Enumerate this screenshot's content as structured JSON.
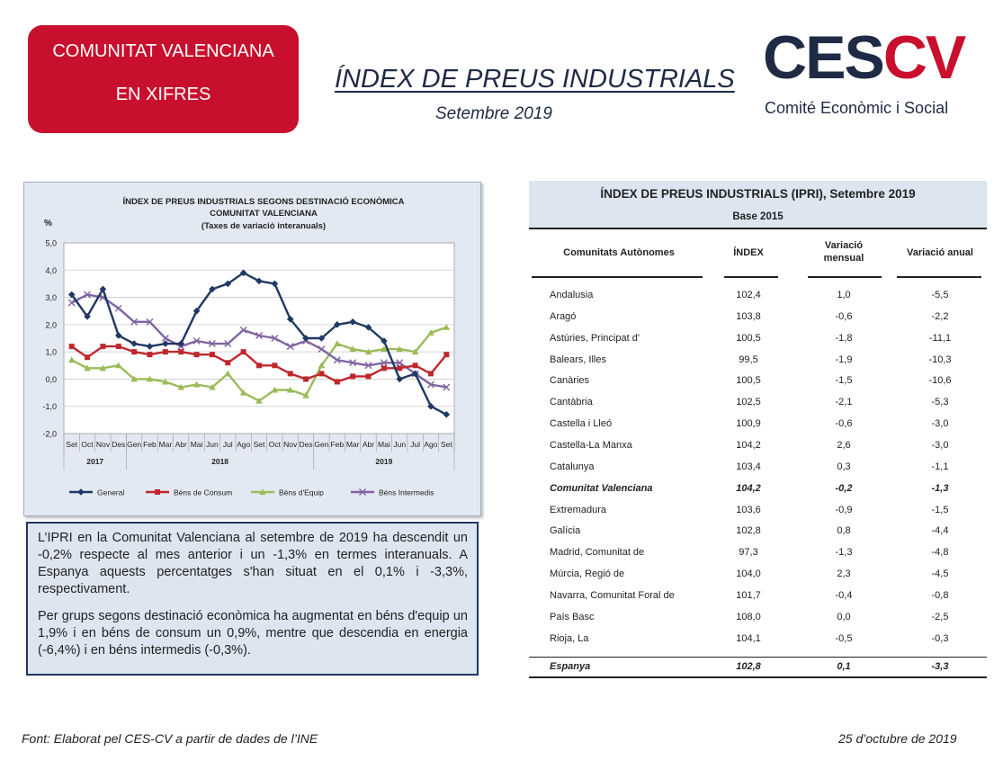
{
  "header": {
    "badge_line1": "COMUNITAT VALENCIANA",
    "badge_line2": "EN XIFRES",
    "title": "ÍNDEX DE PREUS INDUSTRIALS",
    "subtitle": "Setembre 2019",
    "logo_part1": "CES",
    "logo_part2": "CV",
    "logo_sub": "Comité Econòmic i Social"
  },
  "colors": {
    "accent": "#c8102e",
    "navy": "#1f2a44",
    "general": "#1f3864",
    "consum": "#c0272d",
    "equip": "#9bbb59",
    "intermedis": "#8064a2"
  },
  "chart_data": {
    "type": "line",
    "title_lines": [
      "ÍNDEX DE PREUS INDUSTRIALS SEGONS DESTINACIÓ ECONÒMICA",
      "COMUNITAT VALENCIANA",
      "(Taxes de variació interanuals)"
    ],
    "ylabel": "%",
    "ylim": [
      -2.0,
      5.0
    ],
    "yticks": [
      "5,0",
      "4,0",
      "3,0",
      "2,0",
      "1,0",
      "0,0",
      "-1,0",
      "-2,0"
    ],
    "categories": [
      "Set",
      "Oct",
      "Nov",
      "Des",
      "Gen",
      "Feb",
      "Mar",
      "Abr",
      "Mai",
      "Jun",
      "Jul",
      "Ago",
      "Set",
      "Oct",
      "Nov",
      "Des",
      "Gen",
      "Feb",
      "Mar",
      "Abr",
      "Mai",
      "Jun",
      "Jul",
      "Ago",
      "Set"
    ],
    "year_groups": [
      {
        "label": "2017",
        "span": 4
      },
      {
        "label": "2018",
        "span": 12
      },
      {
        "label": "2019",
        "span": 9
      }
    ],
    "grid": true,
    "legend_position": "bottom",
    "series": [
      {
        "name": "General",
        "color": "#1f3864",
        "marker": "diamond",
        "values": [
          3.1,
          2.3,
          3.3,
          1.6,
          1.3,
          1.2,
          1.3,
          1.3,
          2.5,
          3.3,
          3.5,
          3.9,
          3.6,
          3.5,
          2.2,
          1.5,
          1.5,
          2.0,
          2.1,
          1.9,
          1.4,
          0.0,
          0.2,
          -1.0,
          -1.3
        ]
      },
      {
        "name": "Béns de Consum",
        "color": "#c0272d",
        "marker": "square",
        "values": [
          1.2,
          0.8,
          1.2,
          1.2,
          1.0,
          0.9,
          1.0,
          1.0,
          0.9,
          0.9,
          0.6,
          1.0,
          0.5,
          0.5,
          0.2,
          0.0,
          0.2,
          -0.1,
          0.1,
          0.1,
          0.4,
          0.4,
          0.5,
          0.2,
          0.9
        ]
      },
      {
        "name": "Béns d'Equip",
        "color": "#9bbb59",
        "marker": "triangle",
        "values": [
          0.7,
          0.4,
          0.4,
          0.5,
          0.0,
          0.0,
          -0.1,
          -0.3,
          -0.2,
          -0.3,
          0.2,
          -0.5,
          -0.8,
          -0.4,
          -0.4,
          -0.6,
          0.5,
          1.3,
          1.1,
          1.0,
          1.1,
          1.1,
          1.0,
          1.7,
          1.9
        ]
      },
      {
        "name": "Béns Intermedis",
        "color": "#8064a2",
        "marker": "x",
        "values": [
          2.8,
          3.1,
          3.0,
          2.6,
          2.1,
          2.1,
          1.5,
          1.2,
          1.4,
          1.3,
          1.3,
          1.8,
          1.6,
          1.5,
          1.2,
          1.4,
          1.1,
          0.7,
          0.6,
          0.5,
          0.6,
          0.6,
          0.2,
          -0.2,
          -0.3
        ]
      }
    ]
  },
  "textbox": {
    "p1": "L’IPRI en la Comunitat Valenciana al setembre de 2019 ha descendit un -0,2% respecte al mes anterior i un -1,3% en termes interanuals. A Espanya aquests percentatges s'han situat en el 0,1% i -3,3%, respectivament.",
    "p2": "Per grups segons destinació econòmica ha augmentat en béns d'equip un 1,9% i en béns de consum un 0,9%, mentre que descendia en energia (-6,4%) i en béns intermedis (-0,3%)."
  },
  "table": {
    "title": "ÍNDEX DE PREUS INDUSTRIALS (IPRI), Setembre 2019",
    "base": "Base 2015",
    "headers": {
      "region": "Comunitats Autònomes",
      "index": "ÍNDEX",
      "monthly": "Variació mensual",
      "annual": "Variació anual"
    },
    "rows": [
      {
        "name": "Andalusia",
        "index": "102,4",
        "monthly": "1,0",
        "annual": "-5,5"
      },
      {
        "name": "Aragó",
        "index": "103,8",
        "monthly": "-0,6",
        "annual": "-2,2"
      },
      {
        "name": "Astúries, Principat d'",
        "index": "100,5",
        "monthly": "-1,8",
        "annual": "-11,1"
      },
      {
        "name": "Balears, Illes",
        "index": "99,5",
        "monthly": "-1,9",
        "annual": "-10,3"
      },
      {
        "name": "Canàries",
        "index": "100,5",
        "monthly": "-1,5",
        "annual": "-10,6"
      },
      {
        "name": "Cantàbria",
        "index": "102,5",
        "monthly": "-2,1",
        "annual": "-5,3"
      },
      {
        "name": "Castella i Lleó",
        "index": "100,9",
        "monthly": "-0,6",
        "annual": "-3,0"
      },
      {
        "name": "Castella-La Manxa",
        "index": "104,2",
        "monthly": "2,6",
        "annual": "-3,0"
      },
      {
        "name": "Catalunya",
        "index": "103,4",
        "monthly": "0,3",
        "annual": "-1,1"
      },
      {
        "name": "Comunitat Valenciana",
        "index": "104,2",
        "monthly": "-0,2",
        "annual": "-1,3",
        "highlight": true
      },
      {
        "name": "Extremadura",
        "index": "103,6",
        "monthly": "-0,9",
        "annual": "-1,5"
      },
      {
        "name": "Galícia",
        "index": "102,8",
        "monthly": "0,8",
        "annual": "-4,4"
      },
      {
        "name": "Madrid, Comunitat de",
        "index": "97,3",
        "monthly": "-1,3",
        "annual": "-4,8"
      },
      {
        "name": "Múrcia, Regió de",
        "index": "104,0",
        "monthly": "2,3",
        "annual": "-4,5"
      },
      {
        "name": "Navarra, Comunitat Foral de",
        "index": "101,7",
        "monthly": "-0,4",
        "annual": "-0,8"
      },
      {
        "name": "País Basc",
        "index": "108,0",
        "monthly": "0,0",
        "annual": "-2,5"
      },
      {
        "name": "Rioja, La",
        "index": "104,1",
        "monthly": "-0,5",
        "annual": "-0,3"
      }
    ],
    "total": {
      "name": "Espanya",
      "index": "102,8",
      "monthly": "0,1",
      "annual": "-3,3"
    }
  },
  "footer": {
    "source": "Font: Elaborat pel CES-CV a partir de dades de l’INE",
    "date": "25 d’octubre de 2019"
  }
}
